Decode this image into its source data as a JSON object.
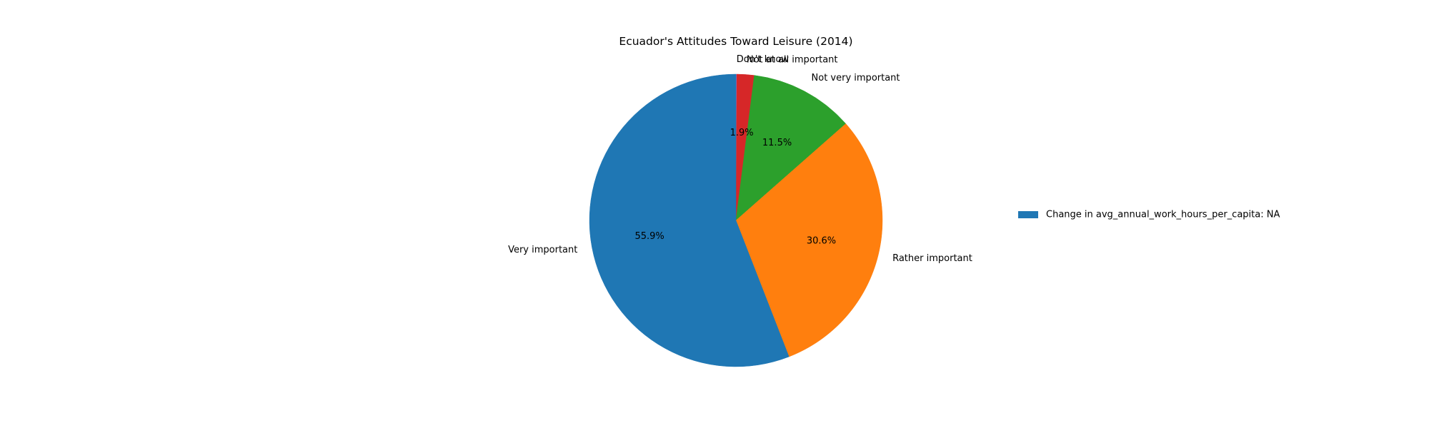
{
  "chart_data": {
    "type": "pie",
    "title": "Ecuador's Attitudes Toward Leisure (2014)",
    "slices": [
      {
        "label": "Don't know",
        "value": 0.1,
        "pct_label": "",
        "color": "#9467bd"
      },
      {
        "label": "Not at all important",
        "value": 1.9,
        "pct_label": "1.9%",
        "color": "#d62728"
      },
      {
        "label": "Not very important",
        "value": 11.5,
        "pct_label": "11.5%",
        "color": "#2ca02c"
      },
      {
        "label": "Rather important",
        "value": 30.6,
        "pct_label": "30.6%",
        "color": "#ff7f0e"
      },
      {
        "label": "Very important",
        "value": 55.9,
        "pct_label": "55.9%",
        "color": "#1f77b4"
      }
    ],
    "start_angle_deg": 90,
    "direction": "clockwise",
    "legend": {
      "placement": "right",
      "entries": [
        {
          "label": "Change in avg_annual_work_hours_per_capita: NA",
          "color": "#1f77b4"
        }
      ]
    }
  }
}
